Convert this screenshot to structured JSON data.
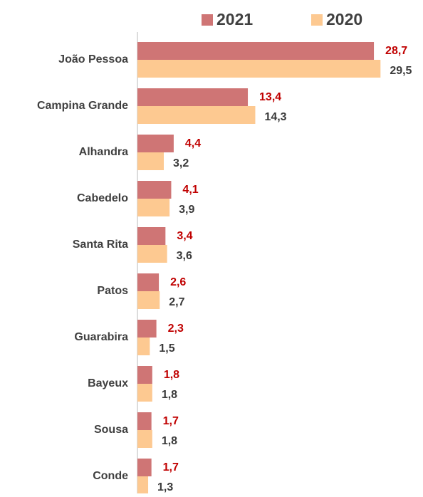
{
  "chart_data": {
    "type": "hbar",
    "categories": [
      "João Pessoa",
      "Campina Grande",
      "Alhandra",
      "Cabedelo",
      "Santa Rita",
      "Patos",
      "Guarabira",
      "Bayeux",
      "Sousa",
      "Conde"
    ],
    "series": [
      {
        "name": "2021",
        "color": "#cf7575",
        "label_color": "#c00000",
        "values": [
          28.7,
          13.4,
          4.4,
          4.1,
          3.4,
          2.6,
          2.3,
          1.8,
          1.7,
          1.7
        ],
        "value_labels": [
          "28,7",
          "13,4",
          "4,4",
          "4,1",
          "3,4",
          "2,6",
          "2,3",
          "1,8",
          "1,7",
          "1,7"
        ]
      },
      {
        "name": "2020",
        "color": "#fdc991",
        "label_color": "#3a3a3a",
        "values": [
          29.5,
          14.3,
          3.2,
          3.9,
          3.6,
          2.7,
          1.5,
          1.8,
          1.8,
          1.3
        ],
        "value_labels": [
          "29,5",
          "14,3",
          "3,2",
          "3,9",
          "3,6",
          "2,7",
          "1,5",
          "1,8",
          "1,8",
          "1,3"
        ]
      }
    ],
    "legend": "top"
  }
}
